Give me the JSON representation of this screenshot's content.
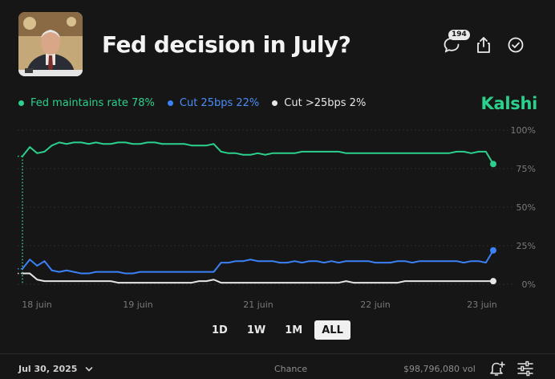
{
  "header": {
    "title": "Fed decision in July?",
    "comment_count": "194"
  },
  "legend": [
    {
      "label": "Fed maintains rate 78%",
      "color": "#2bd08c"
    },
    {
      "label": "Cut 25bps 22%",
      "color": "#3b82f6"
    },
    {
      "label": "Cut >25bps 2%",
      "color": "#e6e6e6"
    }
  ],
  "brand": "Kalshi",
  "chart_data": {
    "type": "line",
    "x_ticks": [
      "18 juin",
      "19 juin",
      "21 juin",
      "22 juin",
      "23 juin"
    ],
    "y_ticks": [
      "100%",
      "75%",
      "50%",
      "25%",
      "0%"
    ],
    "ylim": [
      0,
      100
    ],
    "grid": true,
    "series": [
      {
        "name": "Fed maintains rate",
        "color": "#2bd08c",
        "values": [
          83,
          89,
          85,
          86,
          90,
          92,
          91,
          92,
          92,
          91,
          92,
          91,
          91,
          92,
          92,
          91,
          91,
          92,
          92,
          91,
          91,
          91,
          91,
          90,
          90,
          90,
          91,
          86,
          85,
          85,
          84,
          84,
          85,
          84,
          85,
          85,
          85,
          85,
          86,
          86,
          86,
          86,
          86,
          86,
          85,
          85,
          85,
          85,
          85,
          85,
          85,
          85,
          85,
          85,
          85,
          85,
          85,
          85,
          85,
          86,
          86,
          85,
          86,
          86,
          78
        ]
      },
      {
        "name": "Cut 25bps",
        "color": "#3b82f6",
        "values": [
          10,
          16,
          12,
          15,
          9,
          8,
          9,
          8,
          7,
          7,
          8,
          8,
          8,
          8,
          7,
          7,
          8,
          8,
          8,
          8,
          8,
          8,
          8,
          8,
          8,
          8,
          8,
          14,
          14,
          15,
          15,
          16,
          15,
          15,
          15,
          14,
          14,
          15,
          14,
          15,
          15,
          14,
          15,
          14,
          15,
          15,
          15,
          15,
          14,
          14,
          14,
          15,
          15,
          14,
          15,
          15,
          15,
          15,
          15,
          15,
          14,
          15,
          15,
          14,
          22
        ]
      },
      {
        "name": "Cut >25bps",
        "color": "#e6e6e6",
        "values": [
          7,
          7,
          3,
          2,
          2,
          2,
          2,
          2,
          2,
          2,
          2,
          2,
          2,
          1,
          1,
          1,
          1,
          1,
          1,
          1,
          1,
          1,
          1,
          1,
          2,
          2,
          3,
          1,
          1,
          1,
          1,
          1,
          1,
          1,
          1,
          1,
          1,
          1,
          1,
          1,
          1,
          1,
          1,
          1,
          2,
          1,
          1,
          1,
          1,
          1,
          1,
          1,
          2,
          2,
          2,
          2,
          2,
          2,
          2,
          2,
          2,
          2,
          2,
          2,
          2
        ]
      }
    ]
  },
  "ranges": [
    "1D",
    "1W",
    "1M",
    "ALL"
  ],
  "active_range": "ALL",
  "footer": {
    "date": "Jul 30, 2025",
    "chance": "Chance",
    "volume": "$98,796,080 vol"
  }
}
